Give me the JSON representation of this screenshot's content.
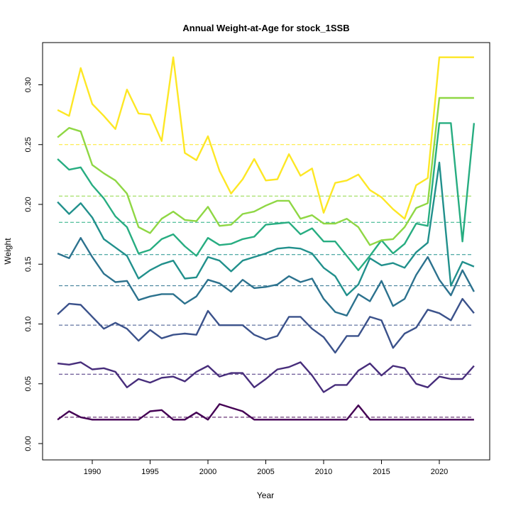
{
  "chart_data": {
    "type": "line",
    "title": "Annual Weight-at-Age for stock_1SSB",
    "xlabel": "Year",
    "ylabel": "Weight",
    "xlim": [
      1987,
      2023
    ],
    "ylim": [
      0,
      0.33
    ],
    "x_ticks": [
      1990,
      1995,
      2000,
      2005,
      2010,
      2015,
      2020
    ],
    "y_ticks": [
      "0.00",
      "0.05",
      "0.10",
      "0.15",
      "0.20",
      "0.25",
      "0.30"
    ],
    "grid": false,
    "legend": "none",
    "x": [
      1987,
      1988,
      1989,
      1990,
      1991,
      1992,
      1993,
      1994,
      1995,
      1996,
      1997,
      1998,
      1999,
      2000,
      2001,
      2002,
      2003,
      2004,
      2005,
      2006,
      2007,
      2008,
      2009,
      2010,
      2011,
      2012,
      2013,
      2014,
      2015,
      2016,
      2017,
      2018,
      2019,
      2020,
      2021,
      2022,
      2023
    ],
    "series": [
      {
        "color": "#440154",
        "mean": 0.022,
        "values": [
          0.02,
          0.027,
          0.022,
          0.02,
          0.02,
          0.02,
          0.02,
          0.02,
          0.027,
          0.028,
          0.02,
          0.02,
          0.026,
          0.02,
          0.033,
          0.03,
          0.027,
          0.02,
          0.02,
          0.02,
          0.02,
          0.02,
          0.02,
          0.02,
          0.02,
          0.02,
          0.032,
          0.02,
          0.02,
          0.02,
          0.02,
          0.02,
          0.02,
          0.02,
          0.02,
          0.02,
          0.02
        ]
      },
      {
        "color": "#472D7B",
        "mean": 0.058,
        "values": [
          0.067,
          0.066,
          0.068,
          0.062,
          0.063,
          0.06,
          0.047,
          0.054,
          0.051,
          0.055,
          0.056,
          0.052,
          0.06,
          0.065,
          0.056,
          0.059,
          0.059,
          0.047,
          0.054,
          0.062,
          0.064,
          0.068,
          0.057,
          0.043,
          0.049,
          0.049,
          0.061,
          0.067,
          0.057,
          0.065,
          0.063,
          0.05,
          0.047,
          0.056,
          0.054,
          0.054,
          0.065
        ]
      },
      {
        "color": "#3B528B",
        "mean": 0.099,
        "values": [
          0.108,
          0.117,
          0.116,
          0.106,
          0.096,
          0.101,
          0.096,
          0.086,
          0.095,
          0.088,
          0.091,
          0.092,
          0.091,
          0.111,
          0.099,
          0.099,
          0.099,
          0.091,
          0.087,
          0.09,
          0.106,
          0.106,
          0.096,
          0.089,
          0.076,
          0.09,
          0.09,
          0.106,
          0.103,
          0.08,
          0.092,
          0.097,
          0.112,
          0.109,
          0.103,
          0.121,
          0.109
        ]
      },
      {
        "color": "#2C728E",
        "mean": 0.132,
        "values": [
          0.159,
          0.155,
          0.172,
          0.156,
          0.142,
          0.135,
          0.136,
          0.12,
          0.123,
          0.125,
          0.125,
          0.117,
          0.123,
          0.137,
          0.134,
          0.127,
          0.137,
          0.13,
          0.131,
          0.133,
          0.14,
          0.135,
          0.138,
          0.121,
          0.11,
          0.107,
          0.125,
          0.119,
          0.136,
          0.115,
          0.121,
          0.141,
          0.156,
          0.137,
          0.124,
          0.145,
          0.127
        ]
      },
      {
        "color": "#21908C",
        "mean": 0.158,
        "values": [
          0.202,
          0.192,
          0.201,
          0.189,
          0.171,
          0.164,
          0.157,
          0.138,
          0.145,
          0.15,
          0.153,
          0.138,
          0.139,
          0.156,
          0.153,
          0.144,
          0.153,
          0.156,
          0.159,
          0.163,
          0.164,
          0.163,
          0.159,
          0.147,
          0.14,
          0.124,
          0.133,
          0.155,
          0.149,
          0.151,
          0.147,
          0.16,
          0.168,
          0.235,
          0.132,
          0.152,
          0.148
        ]
      },
      {
        "color": "#27AD81",
        "mean": 0.185,
        "values": [
          0.238,
          0.229,
          0.231,
          0.216,
          0.205,
          0.19,
          0.181,
          0.159,
          0.162,
          0.171,
          0.175,
          0.165,
          0.157,
          0.172,
          0.166,
          0.167,
          0.171,
          0.173,
          0.183,
          0.184,
          0.185,
          0.175,
          0.18,
          0.169,
          0.169,
          0.157,
          0.145,
          0.157,
          0.17,
          0.159,
          0.167,
          0.184,
          0.182,
          0.268,
          0.268,
          0.169,
          0.268
        ]
      },
      {
        "color": "#8FD744",
        "mean": 0.207,
        "values": [
          0.256,
          0.264,
          0.261,
          0.233,
          0.226,
          0.22,
          0.209,
          0.181,
          0.176,
          0.188,
          0.194,
          0.187,
          0.186,
          0.198,
          0.182,
          0.183,
          0.192,
          0.194,
          0.199,
          0.203,
          0.203,
          0.188,
          0.191,
          0.184,
          0.184,
          0.188,
          0.181,
          0.166,
          0.17,
          0.171,
          0.181,
          0.197,
          0.201,
          0.289,
          0.289,
          0.289,
          0.289
        ]
      },
      {
        "color": "#FDE725",
        "mean": 0.25,
        "values": [
          0.279,
          0.274,
          0.314,
          0.284,
          0.274,
          0.263,
          0.296,
          0.276,
          0.275,
          0.253,
          0.323,
          0.243,
          0.237,
          0.257,
          0.228,
          0.209,
          0.221,
          0.238,
          0.22,
          0.221,
          0.242,
          0.224,
          0.23,
          0.193,
          0.218,
          0.22,
          0.225,
          0.212,
          0.206,
          0.196,
          0.188,
          0.216,
          0.222,
          0.323,
          0.323,
          0.323,
          0.323
        ]
      }
    ]
  }
}
